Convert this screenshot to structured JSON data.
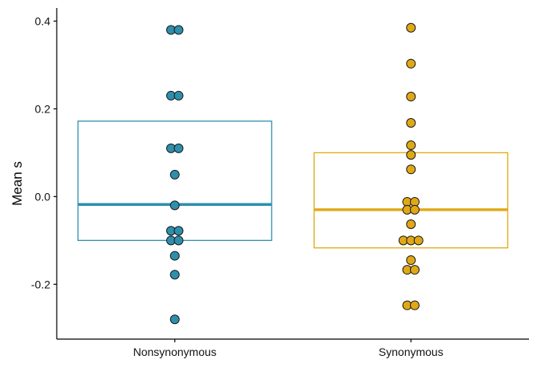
{
  "chart_data": {
    "type": "scatter",
    "subtype": "crossbar-dotplot",
    "title": "",
    "xlabel": "",
    "ylabel": "Mean s",
    "ylim": [
      -0.325,
      0.43
    ],
    "yticks": [
      -0.2,
      0.0,
      0.2,
      0.4
    ],
    "ytick_labels": [
      "-0.2",
      "0.0",
      "0.2",
      "0.4"
    ],
    "categories": [
      "Nonsynonymous",
      "Synonymous"
    ],
    "grid": false,
    "legend": "none",
    "series": [
      {
        "category": "Nonsynonymous",
        "color": "#2E8FAD",
        "mean": -0.018,
        "lower": -0.1,
        "upper": 0.172,
        "points": [
          0.38,
          0.38,
          0.23,
          0.23,
          0.11,
          0.11,
          0.05,
          -0.02,
          -0.078,
          -0.078,
          -0.1,
          -0.1,
          -0.135,
          -0.178,
          -0.28
        ]
      },
      {
        "category": "Synonymous",
        "color": "#E1A814",
        "mean": -0.03,
        "lower": -0.117,
        "upper": 0.1,
        "points": [
          0.385,
          0.303,
          0.228,
          0.168,
          0.117,
          0.095,
          0.062,
          -0.012,
          -0.012,
          -0.03,
          -0.03,
          -0.063,
          -0.1,
          -0.1,
          -0.1,
          -0.145,
          -0.167,
          -0.167,
          -0.248,
          -0.248
        ]
      }
    ]
  }
}
